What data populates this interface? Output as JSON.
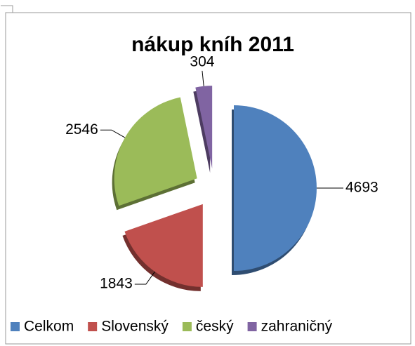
{
  "chart_data": {
    "type": "pie",
    "title": "nákup kníh 2011",
    "categories": [
      "Celkom",
      "Slovenský",
      "český",
      "zahraničný"
    ],
    "values": [
      4693,
      1843,
      2546,
      304
    ],
    "colors": [
      "#4f81bd",
      "#c0504d",
      "#9bbb59",
      "#8064a2"
    ],
    "legend": "bottom"
  }
}
